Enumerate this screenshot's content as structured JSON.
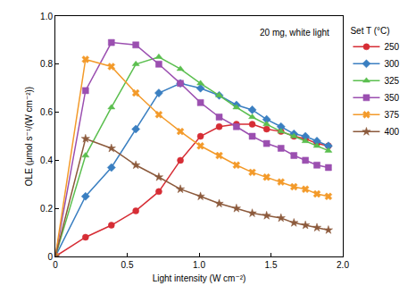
{
  "chart_data": {
    "type": "line",
    "annotations": [
      "20 mg, white light"
    ],
    "x_label": "Light intensity (W cm⁻²)",
    "y_label": "OLE (μmol s⁻¹/(W cm⁻²))",
    "legend_title": "Set T (°C)",
    "legend": "right",
    "grid": false,
    "xlim": [
      0,
      2.0
    ],
    "xticks": [
      0,
      0.5,
      {
        "value": 1.0,
        "label": "1.0"
      },
      1.5,
      {
        "value": 2.0,
        "label": "2.0"
      }
    ],
    "ylim": [
      0,
      1.0
    ],
    "yticks": [
      0,
      0.2,
      0.4,
      0.6,
      0.8,
      {
        "value": 1.0,
        "label": "1.0"
      }
    ],
    "x": [
      0,
      0.21,
      0.39,
      0.56,
      0.72,
      0.87,
      1.01,
      1.14,
      1.26,
      1.37,
      1.47,
      1.57,
      1.66,
      1.74,
      1.82,
      1.9
    ],
    "series": [
      {
        "name": "250",
        "color": "#d62d35",
        "marker": "circle",
        "values": [
          0,
          0.08,
          0.13,
          0.19,
          0.27,
          0.4,
          0.5,
          0.54,
          0.55,
          0.55,
          0.53,
          0.52,
          0.5,
          0.49,
          0.47,
          0.46
        ]
      },
      {
        "name": "300",
        "color": "#3a7fc1",
        "marker": "diamond",
        "values": [
          0,
          0.25,
          0.37,
          0.53,
          0.68,
          0.72,
          0.7,
          0.67,
          0.63,
          0.61,
          0.57,
          0.54,
          0.51,
          0.5,
          0.48,
          0.46
        ]
      },
      {
        "name": "325",
        "color": "#5bbf4f",
        "marker": "triangle-up",
        "values": [
          0,
          0.42,
          0.62,
          0.8,
          0.83,
          0.78,
          0.72,
          0.67,
          0.62,
          0.58,
          0.55,
          0.52,
          0.5,
          0.48,
          0.46,
          0.44
        ]
      },
      {
        "name": "350",
        "color": "#9b4fb0",
        "marker": "square",
        "values": [
          0,
          0.69,
          0.89,
          0.88,
          0.8,
          0.72,
          0.64,
          0.58,
          0.54,
          0.5,
          0.47,
          0.45,
          0.42,
          0.4,
          0.38,
          0.37
        ]
      },
      {
        "name": "375",
        "color": "#f39a2a",
        "marker": "x",
        "values": [
          0,
          0.82,
          0.79,
          0.68,
          0.59,
          0.52,
          0.46,
          0.42,
          0.38,
          0.35,
          0.33,
          0.31,
          0.29,
          0.28,
          0.26,
          0.25
        ]
      },
      {
        "name": "400",
        "color": "#8c5a3c",
        "marker": "star",
        "values": [
          0,
          0.49,
          0.45,
          0.38,
          0.33,
          0.28,
          0.25,
          0.22,
          0.2,
          0.18,
          0.17,
          0.16,
          0.14,
          0.13,
          0.12,
          0.11
        ]
      }
    ]
  }
}
